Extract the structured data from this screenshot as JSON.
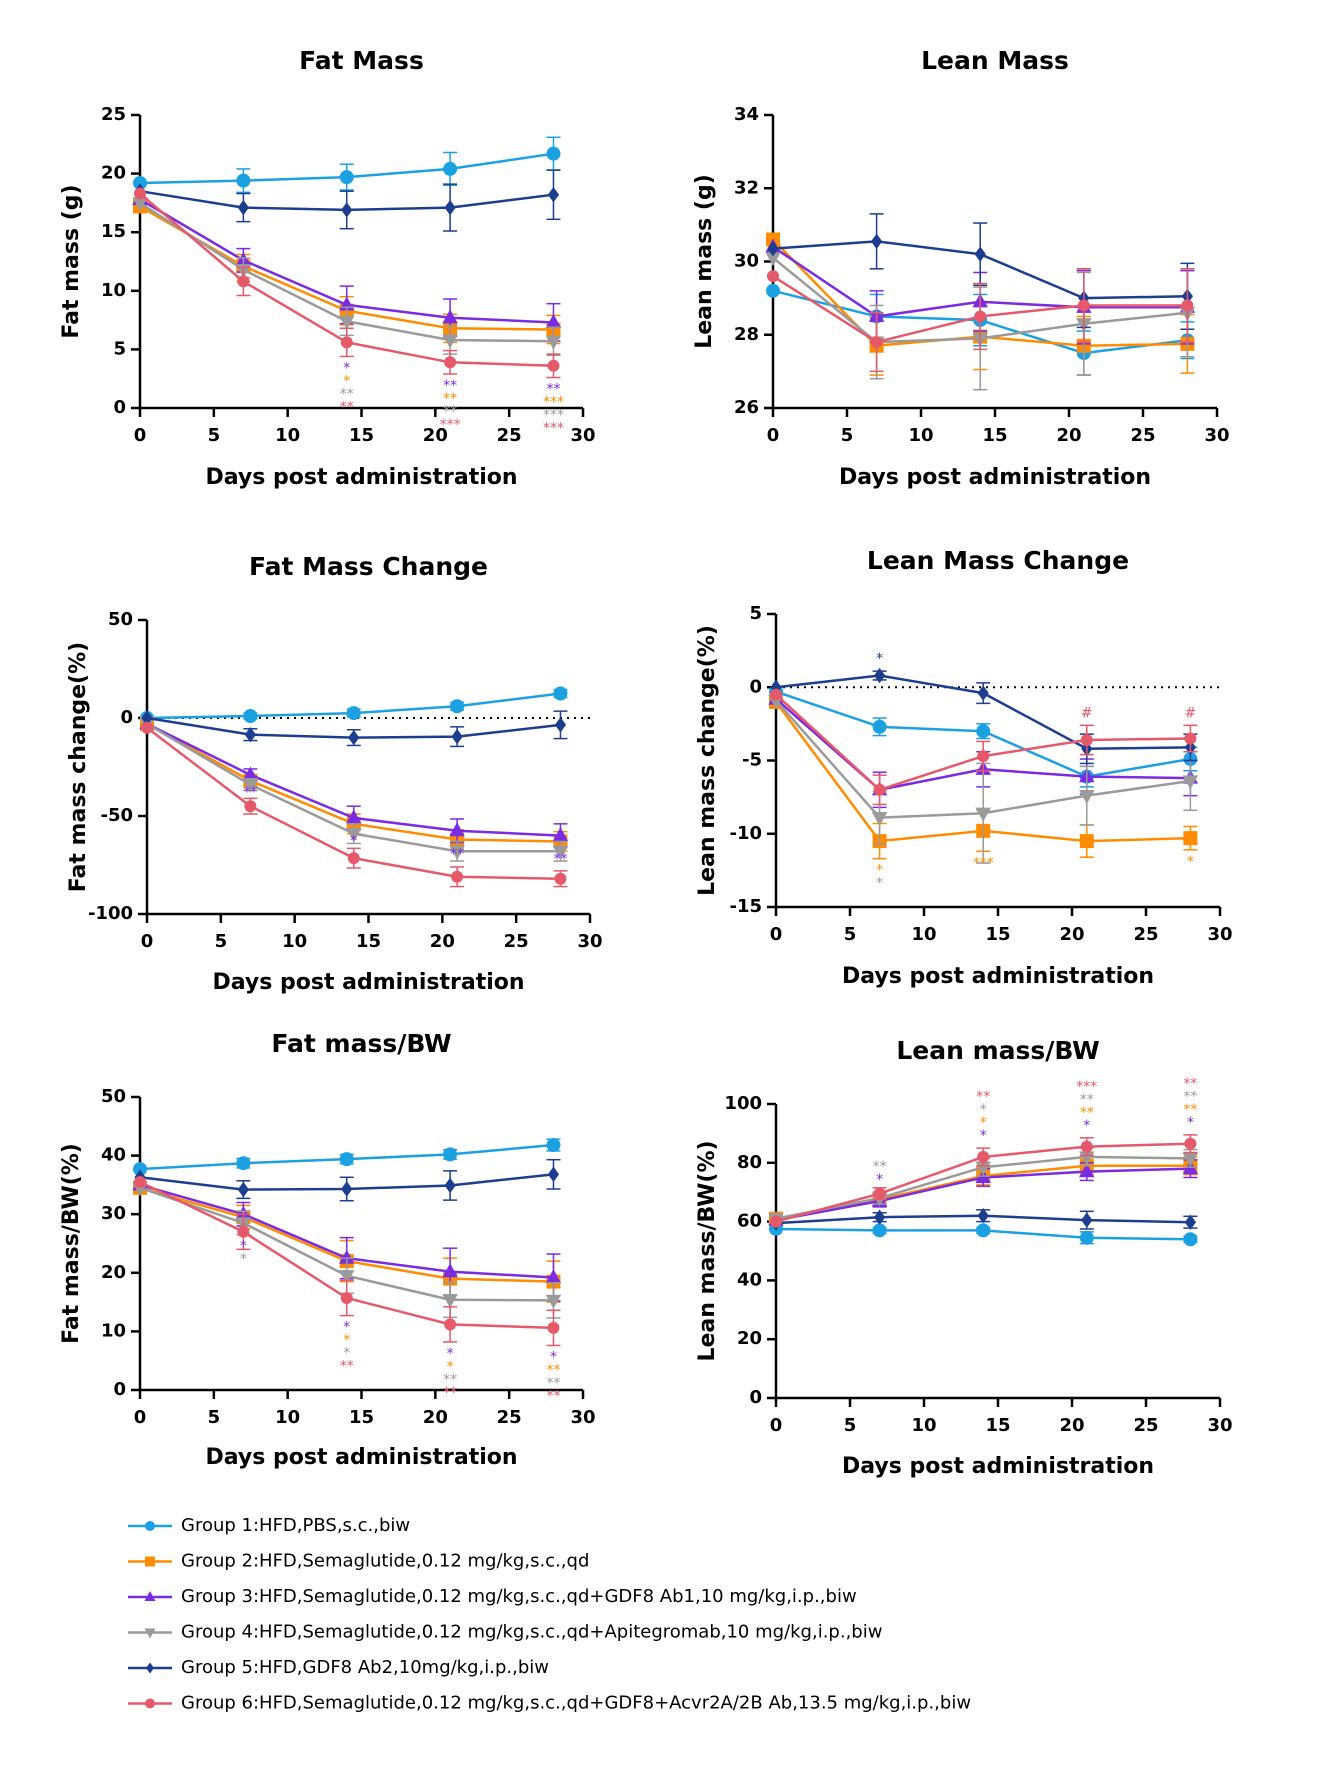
{
  "legend": [
    {
      "name": "Group 1:HFD,PBS,s.c.,biw",
      "color": "#1ba1e2",
      "marker": "circle"
    },
    {
      "name": "Group 2:HFD,Semaglutide,0.12 mg/kg,s.c.,qd",
      "color": "#ff8c00",
      "marker": "square"
    },
    {
      "name": "Group 3:HFD,Semaglutide,0.12 mg/kg,s.c.,qd+GDF8 Ab1,10 mg/kg,i.p.,biw",
      "color": "#7b2be2",
      "marker": "triangle-up"
    },
    {
      "name": "Group 4:HFD,Semaglutide,0.12 mg/kg,s.c.,qd+Apitegromab,10 mg/kg,i.p.,biw",
      "color": "#9a9a9a",
      "marker": "triangle-down"
    },
    {
      "name": "Group 5:HFD,GDF8 Ab2,10mg/kg,i.p.,biw",
      "color": "#1d3d8f",
      "marker": "diamond"
    },
    {
      "name": "Group 6:HFD,Semaglutide,0.12 mg/kg,s.c.,qd+GDF8+Acvr2A/2B Ab,13.5 mg/kg,i.p.,biw",
      "color": "#e5596b",
      "marker": "circle"
    }
  ],
  "chart_data": [
    {
      "type": "line",
      "title": "Fat Mass",
      "xlabel": "Days post administration",
      "ylabel": "Fat mass (g)",
      "x": [
        0,
        7,
        14,
        21,
        28
      ],
      "xlim": [
        0,
        30
      ],
      "xticks": [
        0,
        5,
        10,
        15,
        20,
        25,
        30
      ],
      "ylim": [
        0,
        25
      ],
      "yticks": [
        0,
        5,
        10,
        15,
        20,
        25
      ],
      "zero_line": false,
      "significance_side": "below",
      "series": [
        {
          "values": [
            19.2,
            19.4,
            19.7,
            20.4,
            21.7
          ],
          "errors": [
            0,
            1.0,
            1.1,
            1.4,
            1.4
          ]
        },
        {
          "values": [
            17.2,
            12.1,
            8.3,
            6.8,
            6.7
          ],
          "errors": [
            0,
            1.0,
            1.2,
            1.2,
            1.2
          ],
          "significance": [
            null,
            null,
            "*",
            "**",
            "***"
          ]
        },
        {
          "values": [
            17.8,
            12.6,
            8.8,
            7.7,
            7.3
          ],
          "errors": [
            0,
            1.0,
            1.6,
            1.6,
            1.6
          ],
          "significance": [
            null,
            null,
            "*",
            "**",
            "**"
          ]
        },
        {
          "values": [
            17.5,
            11.8,
            7.4,
            5.8,
            5.7
          ],
          "errors": [
            0,
            1.0,
            1.2,
            1.2,
            1.2
          ],
          "significance": [
            null,
            null,
            "**",
            "**",
            "***"
          ]
        },
        {
          "values": [
            18.5,
            17.1,
            16.9,
            17.1,
            18.2
          ],
          "errors": [
            0,
            1.2,
            1.6,
            2.0,
            2.1
          ]
        },
        {
          "values": [
            18.3,
            10.8,
            5.6,
            3.9,
            3.6
          ],
          "errors": [
            0,
            1.2,
            1.2,
            1.0,
            1.0
          ],
          "significance": [
            null,
            null,
            "**",
            "***",
            "***"
          ]
        }
      ]
    },
    {
      "type": "line",
      "title": "Lean Mass",
      "xlabel": "Days post administration",
      "ylabel": "Lean mass (g)",
      "x": [
        0,
        7,
        14,
        21,
        28
      ],
      "xlim": [
        0,
        30
      ],
      "xticks": [
        0,
        5,
        10,
        15,
        20,
        25,
        30
      ],
      "ylim": [
        26,
        34
      ],
      "yticks": [
        26,
        28,
        30,
        32,
        34
      ],
      "zero_line": false,
      "significance_side": "below",
      "series": [
        {
          "values": [
            29.2,
            28.5,
            28.4,
            27.5,
            27.85
          ],
          "errors": [
            0,
            0.6,
            0.7,
            0.6,
            0.5
          ]
        },
        {
          "values": [
            30.6,
            27.7,
            27.95,
            27.7,
            27.75
          ],
          "errors": [
            0,
            0.8,
            0.9,
            0.8,
            0.8
          ]
        },
        {
          "values": [
            30.4,
            28.5,
            28.9,
            28.75,
            28.75
          ],
          "errors": [
            0,
            0.7,
            0.8,
            1.0,
            1.0
          ]
        },
        {
          "values": [
            30.1,
            27.8,
            27.9,
            28.3,
            28.6
          ],
          "errors": [
            0,
            1.0,
            1.4,
            1.4,
            1.2
          ]
        },
        {
          "values": [
            30.35,
            30.55,
            30.2,
            29.0,
            29.05
          ],
          "errors": [
            0,
            0.75,
            0.85,
            0.8,
            0.9
          ]
        },
        {
          "values": [
            29.6,
            27.8,
            28.5,
            28.8,
            28.8
          ],
          "errors": [
            0,
            0.8,
            0.9,
            1.0,
            1.0
          ]
        }
      ]
    },
    {
      "type": "line",
      "title": "Fat Mass Change",
      "xlabel": "Days post administration",
      "ylabel": "Fat mass change(%)",
      "x": [
        0,
        7,
        14,
        21,
        28
      ],
      "xlim": [
        0,
        30
      ],
      "xticks": [
        0,
        5,
        10,
        15,
        20,
        25,
        30
      ],
      "ylim": [
        -100,
        50
      ],
      "yticks": [
        -100,
        -50,
        0,
        50
      ],
      "zero_line": true,
      "significance_side": "below",
      "series": [
        {
          "values": [
            0,
            1,
            2.5,
            6,
            12.5
          ],
          "errors": [
            0,
            1.5,
            2,
            2,
            2
          ]
        },
        {
          "values": [
            -3,
            -32,
            -54,
            -62,
            -63
          ],
          "errors": [
            0,
            3,
            5,
            5,
            5
          ]
        },
        {
          "values": [
            -3,
            -29,
            -51,
            -57.5,
            -60
          ],
          "errors": [
            0,
            3,
            6,
            6,
            6
          ],
          "significance": [
            null,
            "**",
            "*",
            "**",
            "**"
          ]
        },
        {
          "values": [
            -3,
            -34,
            -59,
            -68,
            -68
          ],
          "errors": [
            0,
            3,
            5,
            5,
            5
          ]
        },
        {
          "values": [
            0,
            -8.5,
            -10,
            -9.5,
            -3.5
          ],
          "errors": [
            0,
            3,
            4,
            5,
            7
          ]
        },
        {
          "values": [
            -5,
            -45,
            -71.5,
            -81,
            -82
          ],
          "errors": [
            0,
            4,
            5,
            5,
            4
          ]
        }
      ],
      "significance_extra": [
        null,
        [
          "**",
          "**",
          "**"
        ],
        [
          "**",
          "**",
          "***"
        ],
        [
          "***",
          "**",
          "***"
        ],
        [
          "***",
          "**",
          "***"
        ]
      ]
    },
    {
      "type": "line",
      "title": "Lean Mass Change",
      "xlabel": "Days post administration",
      "ylabel": "Lean mass change(%)",
      "x": [
        0,
        7,
        14,
        21,
        28
      ],
      "xlim": [
        0,
        30
      ],
      "xticks": [
        0,
        5,
        10,
        15,
        20,
        25,
        30
      ],
      "ylim": [
        -15,
        5
      ],
      "yticks": [
        -15,
        -10,
        -5,
        0,
        5
      ],
      "zero_line": true,
      "significance_side": "below",
      "series": [
        {
          "values": [
            -0.3,
            -2.7,
            -3.0,
            -6.1,
            -4.9
          ],
          "errors": [
            0,
            0.6,
            0.5,
            0.7,
            0.8
          ]
        },
        {
          "values": [
            -1,
            -10.5,
            -9.8,
            -10.5,
            -10.3
          ],
          "errors": [
            0,
            1.2,
            1.4,
            1.1,
            0.8
          ],
          "significance": [
            null,
            "*",
            "***",
            null,
            "*"
          ]
        },
        {
          "values": [
            -0.8,
            -7.0,
            -5.6,
            -6.1,
            -6.2
          ],
          "errors": [
            0,
            1.2,
            1.2,
            1.2,
            1.2
          ]
        },
        {
          "values": [
            -0.9,
            -8.9,
            -8.6,
            -7.4,
            -6.4
          ],
          "errors": [
            0,
            1.8,
            3.4,
            2.0,
            2.0
          ],
          "significance": [
            null,
            "*",
            null,
            null,
            null
          ]
        },
        {
          "values": [
            0,
            0.8,
            -0.4,
            -4.2,
            -4.1
          ],
          "errors": [
            0,
            0.3,
            0.7,
            1.0,
            0.9
          ],
          "significance": [
            null,
            "*",
            null,
            null,
            null
          ],
          "significance_side": "above"
        },
        {
          "values": [
            -0.5,
            -7.0,
            -4.7,
            -3.6,
            -3.5
          ],
          "errors": [
            0,
            1.0,
            1.0,
            1.0,
            0.9
          ],
          "significance": [
            null,
            null,
            null,
            "#",
            "#"
          ],
          "significance_side": "above"
        }
      ]
    },
    {
      "type": "line",
      "title": "Fat mass/BW",
      "xlabel": "Days post administration",
      "ylabel": "Fat mass/BW(%)",
      "x": [
        0,
        7,
        14,
        21,
        28
      ],
      "xlim": [
        0,
        30
      ],
      "xticks": [
        0,
        5,
        10,
        15,
        20,
        25,
        30
      ],
      "ylim": [
        0,
        50
      ],
      "yticks": [
        0,
        10,
        20,
        30,
        40,
        50
      ],
      "zero_line": false,
      "significance_side": "below",
      "series": [
        {
          "values": [
            37.7,
            38.7,
            39.4,
            40.2,
            41.8
          ],
          "errors": [
            0,
            0.8,
            0.8,
            0.8,
            1.0
          ]
        },
        {
          "values": [
            34.5,
            29.5,
            22,
            19,
            18.5
          ],
          "errors": [
            0,
            2,
            3.5,
            3.5,
            3.5
          ],
          "significance": [
            null,
            null,
            "*",
            "*",
            "**"
          ]
        },
        {
          "values": [
            35,
            30,
            22.5,
            20.2,
            19.2
          ],
          "errors": [
            0,
            2,
            3.5,
            4,
            4
          ],
          "significance": [
            null,
            "*",
            "*",
            "*",
            "*"
          ]
        },
        {
          "values": [
            34.5,
            28.5,
            19.5,
            15.4,
            15.3
          ],
          "errors": [
            0,
            2,
            3,
            3,
            3
          ],
          "significance": [
            null,
            "*",
            "*",
            "**",
            "**"
          ]
        },
        {
          "values": [
            36.3,
            34.2,
            34.3,
            34.9,
            36.8
          ],
          "errors": [
            0,
            1.5,
            2,
            2.5,
            2.5
          ]
        },
        {
          "values": [
            35.5,
            27,
            15.7,
            11.2,
            10.6
          ],
          "errors": [
            0,
            3,
            3,
            3,
            3
          ],
          "significance": [
            null,
            null,
            "**",
            "**",
            "**"
          ]
        }
      ]
    },
    {
      "type": "line",
      "title": "Lean mass/BW",
      "xlabel": "Days post administration",
      "ylabel": "Lean mass/BW(%)",
      "x": [
        0,
        7,
        14,
        21,
        28
      ],
      "xlim": [
        0,
        30
      ],
      "xticks": [
        0,
        5,
        10,
        15,
        20,
        25,
        30
      ],
      "ylim": [
        0,
        100
      ],
      "yticks": [
        0,
        20,
        40,
        60,
        80,
        100
      ],
      "zero_line": false,
      "significance_side": "above",
      "series": [
        {
          "values": [
            57.5,
            57,
            57,
            54.5,
            54
          ],
          "errors": [
            0,
            1,
            1,
            2,
            1
          ]
        },
        {
          "values": [
            61,
            67.5,
            75.5,
            79,
            79
          ],
          "errors": [
            0,
            2,
            3,
            3,
            3
          ],
          "significance": [
            null,
            null,
            "*",
            "**",
            "**"
          ]
        },
        {
          "values": [
            60.5,
            67,
            75,
            77,
            78
          ],
          "errors": [
            0,
            2,
            3,
            3,
            3
          ],
          "significance": [
            null,
            "*",
            "*",
            "*",
            "*"
          ]
        },
        {
          "values": [
            61,
            68,
            78.5,
            82,
            81.5
          ],
          "errors": [
            0,
            2,
            3,
            3,
            3
          ],
          "significance": [
            null,
            "**",
            "*",
            "**",
            "**"
          ]
        },
        {
          "values": [
            59.5,
            61.5,
            62,
            60.5,
            59.8
          ],
          "errors": [
            0,
            1.5,
            2,
            3,
            2
          ]
        },
        {
          "values": [
            60,
            69.5,
            82,
            85.5,
            86.5
          ],
          "errors": [
            0,
            2,
            3,
            3,
            3
          ],
          "significance": [
            null,
            null,
            "**",
            "***",
            "**"
          ]
        }
      ]
    }
  ]
}
